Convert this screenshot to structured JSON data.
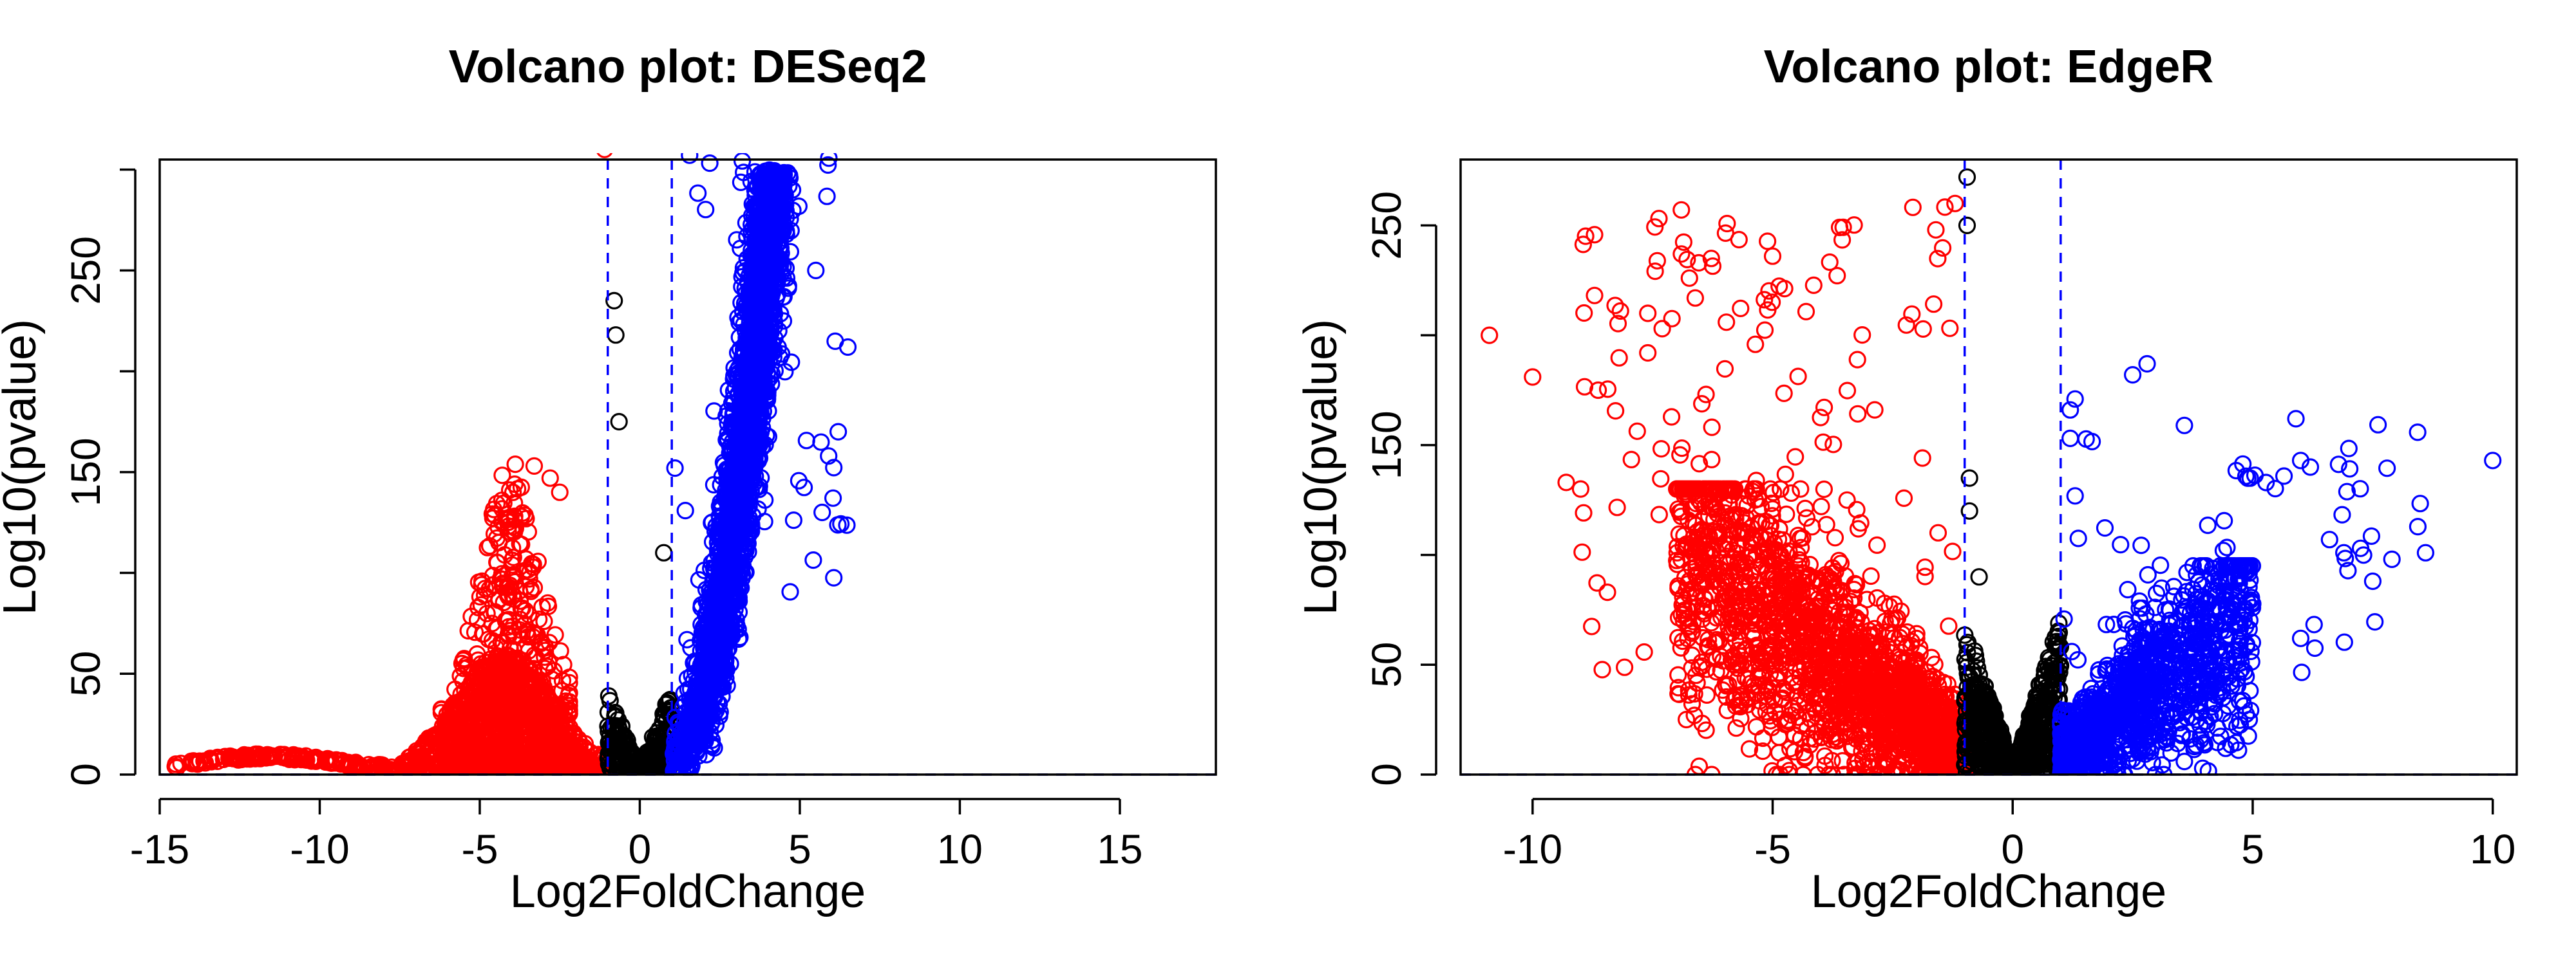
{
  "chart_data": [
    {
      "type": "scatter",
      "title": "Volcano plot: DESeq2",
      "xlabel": "Log2FoldChange",
      "ylabel": "Log10(pvalue)",
      "xlim": [
        -15,
        18
      ],
      "ylim": [
        0,
        305
      ],
      "x_ticks": [
        -15,
        -10,
        -5,
        0,
        5,
        10,
        15
      ],
      "x_tick_labels": [
        "-15",
        "-10",
        "-5",
        "0",
        "5",
        "10",
        "15"
      ],
      "y_ticks": [
        0,
        50,
        150,
        250
      ],
      "y_tick_labels": [
        "0",
        "50",
        "150",
        "250"
      ],
      "y_minor_ticks": [
        100,
        200,
        300
      ],
      "thresholds": {
        "x": [
          -1,
          1
        ],
        "y": 0
      },
      "grid": false,
      "marker": "open-circle",
      "series": [
        {
          "color": "#ff0000",
          "groups": [
            {
              "n": 160,
              "x": [
                -14.6,
                -8.0
              ],
              "y": [
                3,
                11
              ],
              "shape": "flat",
              "peak": 11
            },
            {
              "n": 1400,
              "x": [
                -8.0,
                -1.05
              ],
              "y": [
                0,
                60
              ],
              "shape": "hump",
              "center": -4.2,
              "spread": 2.2
            },
            {
              "n": 320,
              "x": [
                -6.2,
                -2.2
              ],
              "y": [
                30,
                155
              ],
              "shape": "hump",
              "center": -4.0,
              "spread": 1.3
            }
          ],
          "points": [
            {
              "x": -1.1,
              "y": 310
            },
            {
              "x": -3.3,
              "y": 153
            },
            {
              "x": -2.8,
              "y": 147
            },
            {
              "x": -2.5,
              "y": 140
            },
            {
              "x": -3.7,
              "y": 128
            }
          ]
        },
        {
          "color": "#000000",
          "groups": [
            {
              "n": 280,
              "x": [
                -1.0,
                1.0
              ],
              "y": [
                0,
                40
              ],
              "shape": "v"
            }
          ],
          "points": [
            {
              "x": -0.8,
              "y": 235
            },
            {
              "x": -0.75,
              "y": 218
            },
            {
              "x": -0.65,
              "y": 175
            },
            {
              "x": 0.75,
              "y": 110
            }
          ]
        },
        {
          "color": "#0000ff",
          "groups": [
            {
              "n": 2600,
              "x": [
                1.0,
                5.2
              ],
              "y": [
                0,
                300
              ],
              "shape": "curve",
              "x_at_0": 1.0,
              "x_at_300": 4.2,
              "exponent": 0.55,
              "jitter": 0.45
            },
            {
              "n": 40,
              "x": [
                1.4,
                6.6
              ],
              "y": [
                90,
                310
              ],
              "shape": "scatter"
            }
          ],
          "points": [
            {
              "x": 6.5,
              "y": 212
            },
            {
              "x": 6.2,
              "y": 170
            },
            {
              "x": 5.9,
              "y": 158
            },
            {
              "x": 1.1,
              "y": 152
            },
            {
              "x": 5.7,
              "y": 130
            },
            {
              "x": 5.5,
              "y": 250
            }
          ]
        }
      ]
    },
    {
      "type": "scatter",
      "title": "Volcano plot: EdgeR",
      "xlabel": "Log2FoldChange",
      "ylabel": "Log10(pvalue)",
      "xlim": [
        -11.5,
        10.5
      ],
      "ylim": [
        0,
        280
      ],
      "x_ticks": [
        -10,
        -5,
        0,
        5,
        10
      ],
      "x_tick_labels": [
        "-10",
        "-5",
        "0",
        "5",
        "10"
      ],
      "y_ticks": [
        0,
        50,
        150,
        250
      ],
      "y_tick_labels": [
        "0",
        "50",
        "150",
        "250"
      ],
      "y_minor_ticks": [
        100,
        200
      ],
      "thresholds": {
        "x": [
          -1,
          1
        ],
        "y": 0
      },
      "grid": false,
      "marker": "open-circle",
      "series": [
        {
          "color": "#ff0000",
          "groups": [
            {
              "n": 2000,
              "x": [
                -7.0,
                -1.0
              ],
              "y": [
                0,
                130
              ],
              "shape": "wedge",
              "slope": 16,
              "jitter": 40
            },
            {
              "n": 140,
              "x": [
                -9.0,
                -1.2
              ],
              "y": [
                40,
                260
              ],
              "shape": "scatter"
            }
          ],
          "points": [
            {
              "x": -10.9,
              "y": 200
            },
            {
              "x": -10.0,
              "y": 181
            },
            {
              "x": -9.3,
              "y": 133
            },
            {
              "x": -9.0,
              "y": 130
            },
            {
              "x": -6.9,
              "y": 237
            },
            {
              "x": -5.0,
              "y": 236
            },
            {
              "x": -1.2,
              "y": 260
            },
            {
              "x": -1.6,
              "y": 248
            },
            {
              "x": -7.6,
              "y": 210
            },
            {
              "x": -7.3,
              "y": 203
            },
            {
              "x": -7.6,
              "y": 192
            }
          ]
        },
        {
          "color": "#000000",
          "groups": [
            {
              "n": 700,
              "x": [
                -1.0,
                1.0
              ],
              "y": [
                0,
                70
              ],
              "shape": "v"
            }
          ],
          "points": [
            {
              "x": -0.95,
              "y": 272
            },
            {
              "x": -0.95,
              "y": 250
            },
            {
              "x": -0.9,
              "y": 135
            },
            {
              "x": -0.9,
              "y": 120
            },
            {
              "x": -0.7,
              "y": 90
            }
          ]
        },
        {
          "color": "#0000ff",
          "groups": [
            {
              "n": 1200,
              "x": [
                1.0,
                5.0
              ],
              "y": [
                0,
                95
              ],
              "shape": "wedge",
              "slope": 17,
              "jitter": 35
            },
            {
              "n": 60,
              "x": [
                1.0,
                8.5
              ],
              "y": [
                40,
                160
              ],
              "shape": "scatter"
            }
          ],
          "points": [
            {
              "x": 10.0,
              "y": 143
            },
            {
              "x": 8.6,
              "y": 101
            },
            {
              "x": 7.5,
              "y": 88
            },
            {
              "x": 7.9,
              "y": 98
            },
            {
              "x": 6.0,
              "y": 62
            },
            {
              "x": 5.9,
              "y": 162
            },
            {
              "x": 6.0,
              "y": 143
            },
            {
              "x": 6.2,
              "y": 140
            },
            {
              "x": 2.5,
              "y": 182
            },
            {
              "x": 2.8,
              "y": 187
            },
            {
              "x": 1.3,
              "y": 171
            },
            {
              "x": 1.2,
              "y": 166
            },
            {
              "x": 6.6,
              "y": 107
            },
            {
              "x": 6.9,
              "y": 101
            }
          ]
        }
      ]
    }
  ]
}
